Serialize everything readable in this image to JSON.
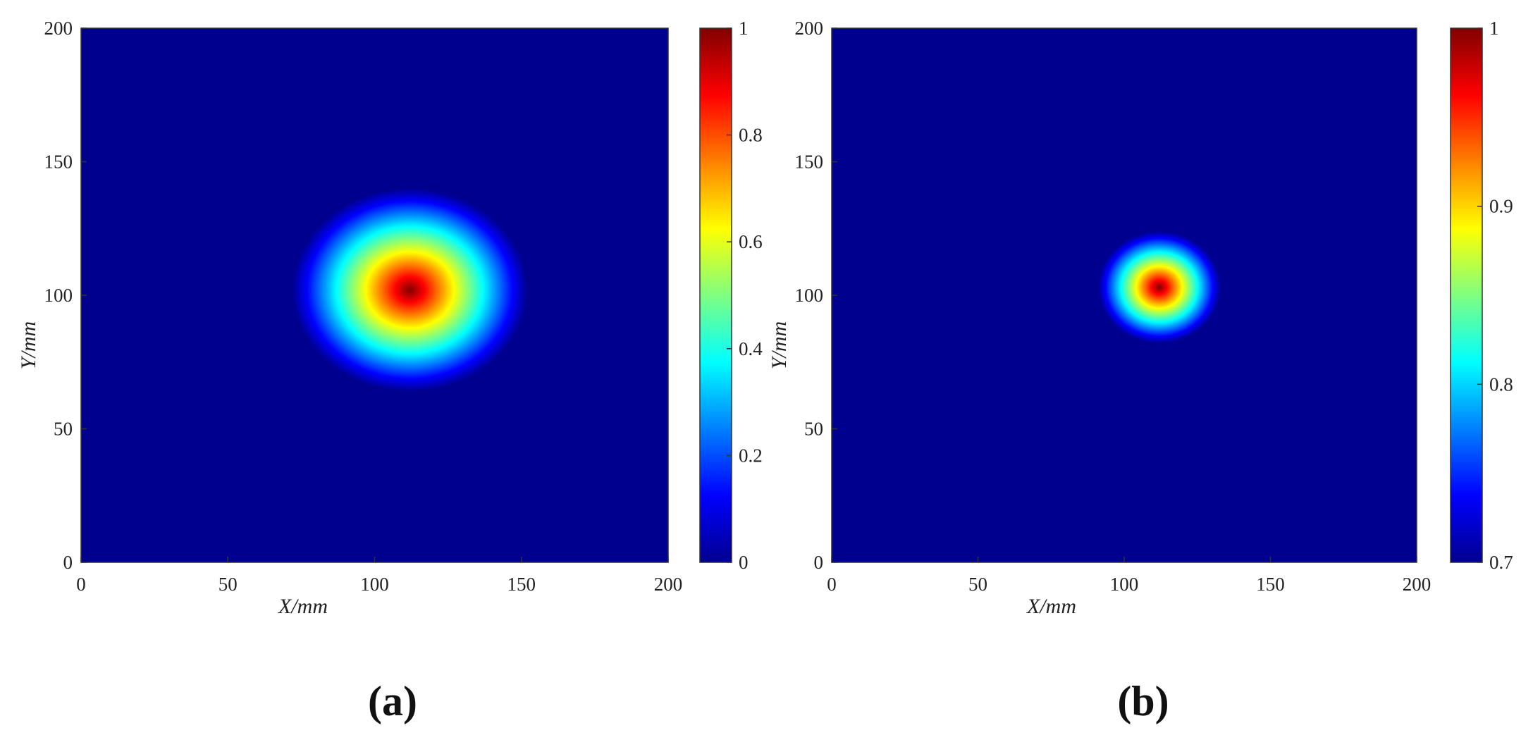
{
  "colormap": "jet",
  "chart_data": [
    {
      "type": "heatmap",
      "panel_label": "(a)",
      "xlabel": "X/mm",
      "ylabel": "Y/mm",
      "xlim": [
        0,
        200
      ],
      "ylim": [
        0,
        200
      ],
      "xticks": [
        "0",
        "50",
        "100",
        "150",
        "200"
      ],
      "yticks": [
        "0",
        "50",
        "100",
        "150",
        "200"
      ],
      "colorbar": {
        "min": 0,
        "max": 1,
        "ticks": [
          "0",
          "0.2",
          "0.4",
          "0.6",
          "0.8",
          "1"
        ],
        "tick_values": [
          0,
          0.2,
          0.4,
          0.6,
          0.8,
          1
        ]
      },
      "field": {
        "center_x": 112,
        "center_y": 102,
        "radius_x": 40,
        "radius_y": 38,
        "peak": 1,
        "background": 0
      }
    },
    {
      "type": "heatmap",
      "panel_label": "(b)",
      "xlabel": "X/mm",
      "ylabel": "Y/mm",
      "xlim": [
        0,
        200
      ],
      "ylim": [
        0,
        200
      ],
      "xticks": [
        "0",
        "50",
        "100",
        "150",
        "200"
      ],
      "yticks": [
        "0",
        "50",
        "100",
        "150",
        "200"
      ],
      "colorbar": {
        "min": 0.7,
        "max": 1,
        "ticks": [
          "0.7",
          "0.8",
          "0.9",
          "1"
        ],
        "tick_values": [
          0.7,
          0.8,
          0.9,
          1
        ]
      },
      "field": {
        "center_x": 112,
        "center_y": 103,
        "radius_x": 21,
        "radius_y": 21,
        "peak": 1,
        "background": 0.7
      }
    }
  ]
}
